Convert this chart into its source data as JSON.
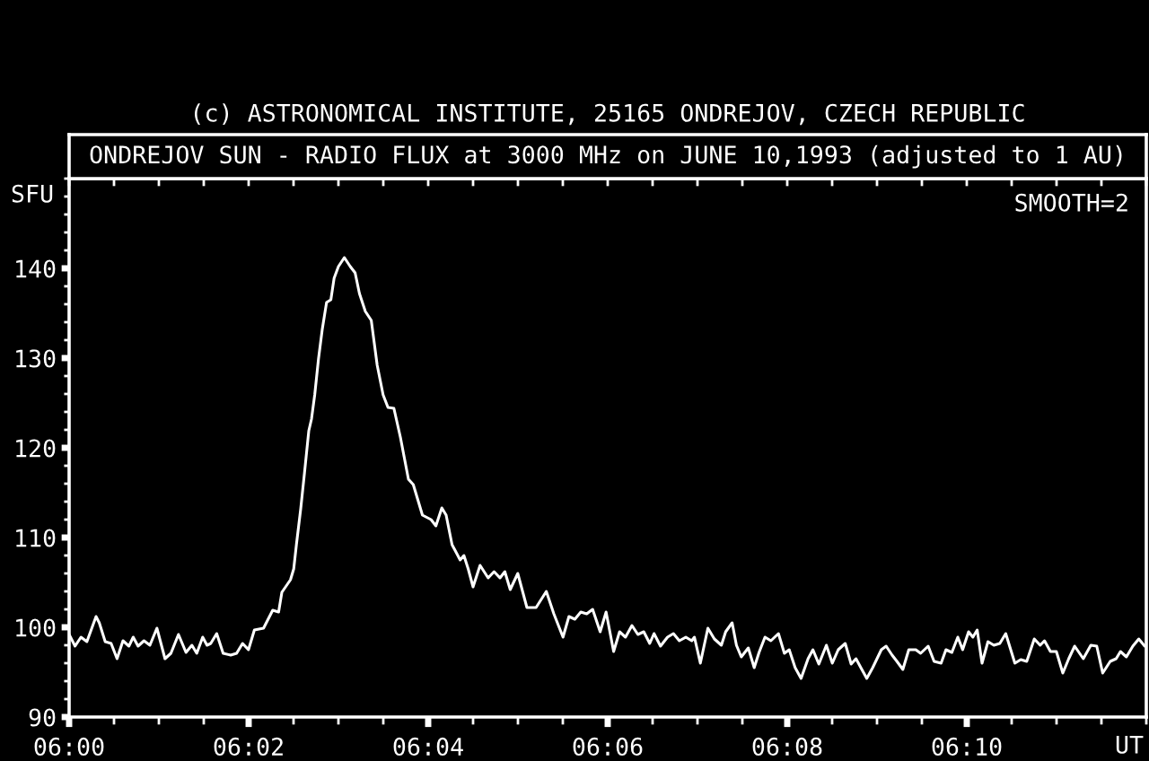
{
  "chart_data": {
    "type": "line",
    "title": "ONDREJOV SUN - RADIO FLUX at 3000 MHz on JUNE 10,1993 (adjusted to 1 AU)",
    "ylabel": "SFU",
    "xlabel": "UT",
    "annotations": [
      "(c) ASTRONOMICAL INSTITUTE, 25165 ONDREJOV, CZECH REPUBLIC",
      "SMOOTH=2"
    ],
    "color": "#ffffff",
    "line_style": "solid",
    "xlim": [
      6,
      6.2
    ],
    "ylim": [
      90,
      150
    ],
    "xticks": [
      {
        "value": 6,
        "label": "06:00"
      },
      {
        "value": 6.008333,
        "label": null
      },
      {
        "value": 6.016667,
        "label": null
      },
      {
        "value": 6.025,
        "label": null
      },
      {
        "value": 6.033333,
        "label": "06:02"
      },
      {
        "value": 6.041667,
        "label": null
      },
      {
        "value": 6.05,
        "label": null
      },
      {
        "value": 6.058333,
        "label": null
      },
      {
        "value": 6.066667,
        "label": "06:04"
      },
      {
        "value": 6.075,
        "label": null
      },
      {
        "value": 6.083333,
        "label": null
      },
      {
        "value": 6.091667,
        "label": null
      },
      {
        "value": 6.1,
        "label": "06:06"
      },
      {
        "value": 6.108333,
        "label": null
      },
      {
        "value": 6.116667,
        "label": null
      },
      {
        "value": 6.125,
        "label": null
      },
      {
        "value": 6.133333,
        "label": "06:08"
      },
      {
        "value": 6.141667,
        "label": null
      },
      {
        "value": 6.15,
        "label": null
      },
      {
        "value": 6.158333,
        "label": null
      },
      {
        "value": 6.166667,
        "label": "06:10"
      },
      {
        "value": 6.175,
        "label": null
      },
      {
        "value": 6.183333,
        "label": null
      },
      {
        "value": 6.191667,
        "label": null
      },
      {
        "value": 6.2,
        "label": null
      }
    ],
    "yticks": [
      90,
      {
        "value": 92,
        "label": null
      },
      {
        "value": 94,
        "label": null
      },
      {
        "value": 96,
        "label": null
      },
      {
        "value": 98,
        "label": null
      },
      100,
      {
        "value": 102,
        "label": null
      },
      {
        "value": 104,
        "label": null
      },
      {
        "value": 106,
        "label": null
      },
      {
        "value": 108,
        "label": null
      },
      110,
      {
        "value": 112,
        "label": null
      },
      {
        "value": 114,
        "label": null
      },
      {
        "value": 116,
        "label": null
      },
      {
        "value": 118,
        "label": null
      },
      120,
      {
        "value": 122,
        "label": null
      },
      {
        "value": 124,
        "label": null
      },
      {
        "value": 126,
        "label": null
      },
      {
        "value": 128,
        "label": null
      },
      130,
      {
        "value": 132,
        "label": null
      },
      {
        "value": 134,
        "label": null
      },
      {
        "value": 136,
        "label": null
      },
      {
        "value": 138,
        "label": null
      },
      140,
      {
        "value": 142,
        "label": null
      },
      {
        "value": 144,
        "label": null
      },
      {
        "value": 146,
        "label": null
      },
      {
        "value": 148,
        "label": null
      },
      {
        "value": 150,
        "label": null
      }
    ],
    "x": [
      6.0,
      6.0011,
      6.0022,
      6.0033,
      6.005,
      6.0056,
      6.0067,
      6.0078,
      6.0089,
      6.01,
      6.0111,
      6.0119,
      6.0128,
      6.0139,
      6.015,
      6.0163,
      6.0178,
      6.0189,
      6.0203,
      6.0217,
      6.0228,
      6.0237,
      6.0248,
      6.0256,
      6.0263,
      6.0274,
      6.0286,
      6.03,
      6.0311,
      6.0322,
      6.0333,
      6.0344,
      6.0361,
      6.0378,
      6.0389,
      6.0395,
      6.0411,
      6.0417,
      6.0422,
      6.043,
      6.0437,
      6.0445,
      6.045,
      6.0456,
      6.0463,
      6.047,
      6.0478,
      6.0486,
      6.0492,
      6.05,
      6.0511,
      6.0522,
      6.0531,
      6.0539,
      6.055,
      6.0561,
      6.0572,
      6.0583,
      6.0592,
      6.0603,
      6.0615,
      6.063,
      6.0639,
      6.0656,
      6.0672,
      6.0681,
      6.0692,
      6.07,
      6.0711,
      6.0726,
      6.0733,
      6.0741,
      6.075,
      6.0763,
      6.0778,
      6.0789,
      6.08,
      6.0809,
      6.0819,
      6.0833,
      6.085,
      6.0867,
      6.0886,
      6.09,
      6.0917,
      6.0928,
      6.0939,
      6.095,
      6.0961,
      6.0972,
      6.0986,
      6.0997,
      6.1011,
      6.1022,
      6.1033,
      6.1045,
      6.1056,
      6.1067,
      6.1078,
      6.1086,
      6.1098,
      6.1111,
      6.1122,
      6.1133,
      6.1145,
      6.1156,
      6.1161,
      6.1172,
      6.1186,
      6.1198,
      6.1211,
      6.1219,
      6.1231,
      6.1239,
      6.1248,
      6.1261,
      6.1272,
      6.1281,
      6.1292,
      6.1303,
      6.1317,
      6.1328,
      6.1337,
      6.1348,
      6.1359,
      6.1372,
      6.1381,
      6.1392,
      6.1406,
      6.1417,
      6.1428,
      6.1441,
      6.1452,
      6.1461,
      6.147,
      6.1481,
      6.1492,
      6.1508,
      6.1517,
      6.1528,
      6.1537,
      6.1548,
      6.1559,
      6.1572,
      6.1581,
      6.1595,
      6.1606,
      6.1619,
      6.1628,
      6.1639,
      6.165,
      6.1659,
      6.167,
      6.1678,
      6.1686,
      6.1695,
      6.1706,
      6.1717,
      6.1728,
      6.1739,
      6.1756,
      6.1767,
      6.1778,
      6.1792,
      6.1803,
      6.1811,
      6.1822,
      6.1833,
      6.1845,
      6.1856,
      6.1867,
      6.1883,
      6.1897,
      6.1908,
      6.1919,
      6.1933,
      6.1944,
      6.1952,
      6.1963,
      6.1975,
      6.1986,
      6.1997
    ],
    "values": [
      99.2,
      97.9,
      98.9,
      98.4,
      101.2,
      100.5,
      98.4,
      98.2,
      96.5,
      98.5,
      97.9,
      98.9,
      97.9,
      98.5,
      98,
      99.9,
      96.5,
      97.1,
      99.2,
      97.2,
      98,
      97.1,
      98.9,
      98,
      98.2,
      99.3,
      97.1,
      96.9,
      97.1,
      98.2,
      97.5,
      99.7,
      99.9,
      101.9,
      101.7,
      103.9,
      105.3,
      106.5,
      109.2,
      113.2,
      117.2,
      121.9,
      123.2,
      125.9,
      129.9,
      133.2,
      136.2,
      136.5,
      138.9,
      140.2,
      141.2,
      140.2,
      139.5,
      137.2,
      135.2,
      134.2,
      129.2,
      125.9,
      124.5,
      124.4,
      121.2,
      116.5,
      115.9,
      112.5,
      112,
      111.3,
      113.3,
      112.5,
      109.2,
      107.5,
      108,
      106.5,
      104.5,
      106.9,
      105.5,
      106.2,
      105.5,
      106.2,
      104.2,
      106,
      102.2,
      102.2,
      104,
      101.5,
      98.9,
      101.2,
      100.9,
      101.7,
      101.5,
      102,
      99.5,
      101.7,
      97.3,
      99.5,
      98.9,
      100.2,
      99.2,
      99.5,
      98.2,
      99.3,
      97.9,
      98.9,
      99.3,
      98.5,
      98.9,
      98.5,
      98.9,
      96,
      99.9,
      98.7,
      98,
      99.5,
      100.5,
      98,
      96.7,
      97.7,
      95.5,
      97.2,
      98.9,
      98.5,
      99.3,
      97.1,
      97.5,
      95.5,
      94.3,
      96.5,
      97.5,
      95.9,
      98,
      96,
      97.5,
      98.2,
      95.9,
      96.5,
      95.5,
      94.3,
      95.5,
      97.5,
      97.9,
      96.9,
      96.2,
      95.3,
      97.5,
      97.5,
      97.1,
      97.9,
      96.2,
      96,
      97.5,
      97.2,
      98.9,
      97.5,
      99.5,
      98.9,
      99.7,
      96,
      98.4,
      98,
      98.2,
      99.3,
      96,
      96.4,
      96.2,
      98.7,
      98,
      98.5,
      97.3,
      97.3,
      94.9,
      96.5,
      97.9,
      96.5,
      98,
      97.9,
      94.9,
      96.2,
      96.5,
      97.3,
      96.7,
      97.9,
      98.7,
      97.9
    ]
  }
}
